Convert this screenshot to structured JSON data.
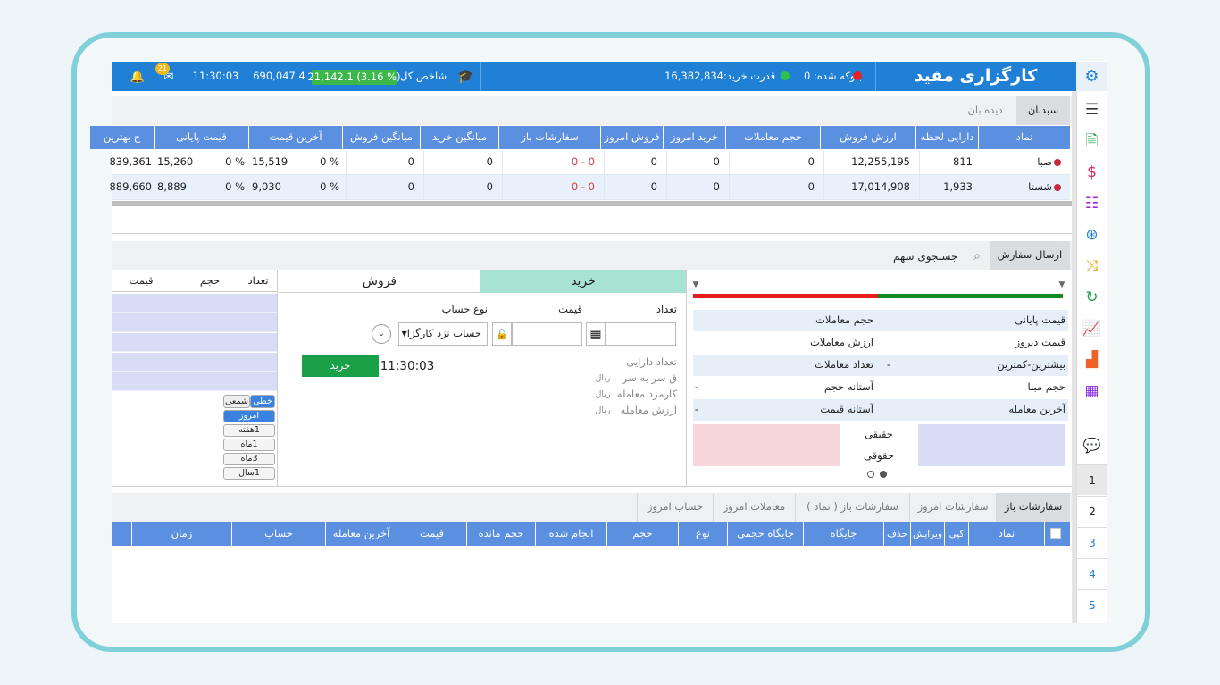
{
  "header": {
    "brand": "کارگزاری مفید",
    "blocked": "بلوکه شده: 0",
    "buying_power_label": "قدرت خرید:",
    "buying_power": "16,382,834",
    "index_label": "شاخص کل",
    "index_change": "21,142.1 (3.16 %)",
    "index_value": "690,047.4",
    "time": "11:30:03",
    "notifications": "21"
  },
  "watch": {
    "tabs": [
      "سبدبان",
      "دیده بان"
    ],
    "columns": [
      "نماد",
      "دارایی لحظه",
      "ارزش فروش",
      "حجم معاملات",
      "خرید امروز",
      "فروش امروز",
      "سفارشات باز",
      "میانگین خرید",
      "میانگین فروش",
      "آخرین قیمت",
      "قیمت پایانی",
      "ح بهترین"
    ],
    "rows": [
      {
        "symbol": "صبا",
        "assets": "811",
        "sell_value": "12,255,195",
        "volume": "0",
        "buy_today": "0",
        "sell_today": "0",
        "open_orders": "0 - 0",
        "avg_buy": "0",
        "avg_sell": "0",
        "last_change": "0 %",
        "last_price": "15,519",
        "close_change": "0 %",
        "close_price": "15,260",
        "best": "839,361"
      },
      {
        "symbol": "شستا",
        "assets": "1,933",
        "sell_value": "17,014,908",
        "volume": "0",
        "buy_today": "0",
        "sell_today": "0",
        "open_orders": "0 - 0",
        "avg_buy": "0",
        "avg_sell": "0",
        "last_change": "0 %",
        "last_price": "9,030",
        "close_change": "0 %",
        "close_price": "8,889",
        "best": "889,660"
      }
    ]
  },
  "order": {
    "tab": "ارسال سفارش",
    "search": "جستجوی سهم",
    "info_right": [
      {
        "label": "قیمت پایانی"
      },
      {
        "label": "قیمت دیروز"
      },
      {
        "label": "بیشترین-کمترین",
        "value": "-"
      },
      {
        "label": "حجم مبنا"
      },
      {
        "label": "آخرین معامله"
      }
    ],
    "info_left": [
      {
        "label": "حجم معاملات"
      },
      {
        "label": "ارزش معاملات"
      },
      {
        "label": "تعداد معاملات"
      },
      {
        "label": "آستانه حجم",
        "value": "-"
      },
      {
        "label": "آستانه قیمت",
        "value": "-"
      }
    ],
    "real": "حقیقی",
    "legal": "حقوقی",
    "buy_tab": "خرید",
    "sell_tab": "فروش",
    "qty_label": "تعداد",
    "price_label": "قیمت",
    "account_label": "نوع حساب",
    "account": "حساب نزد کارگزا",
    "button": "خرید",
    "time": "11:30:03",
    "details": [
      {
        "label": "تعداد دارایی"
      },
      {
        "label": "ق سر به سر",
        "unit": "ریال"
      },
      {
        "label": "کارمزد معامله",
        "unit": "ریال"
      },
      {
        "label": "ارزش معامله",
        "unit": "ریال"
      }
    ],
    "book_columns": [
      "تعداد",
      "حجم",
      "قیمت"
    ],
    "chart_types": [
      "خطی",
      "شمعی"
    ],
    "ranges": [
      "امروز",
      "1هفته",
      "1ماه",
      "3ماه",
      "1سال"
    ]
  },
  "orders": {
    "tabs": [
      "سفارشات باز",
      "سفارشات امروز",
      "سفارشات باز ( نماد )",
      "معاملات امروز",
      "حساب امروز"
    ],
    "columns": [
      "نماد",
      "کپی",
      "ویرایش",
      "حذف",
      "جایگاه",
      "جایگاه حجمی",
      "نوع",
      "حجم",
      "انجام شده",
      "حجم مانده",
      "قیمت",
      "آخرین معامله",
      "حساب",
      "زمان"
    ]
  },
  "sidebar": {
    "pages": [
      "1",
      "2",
      "3",
      "4",
      "5"
    ]
  }
}
